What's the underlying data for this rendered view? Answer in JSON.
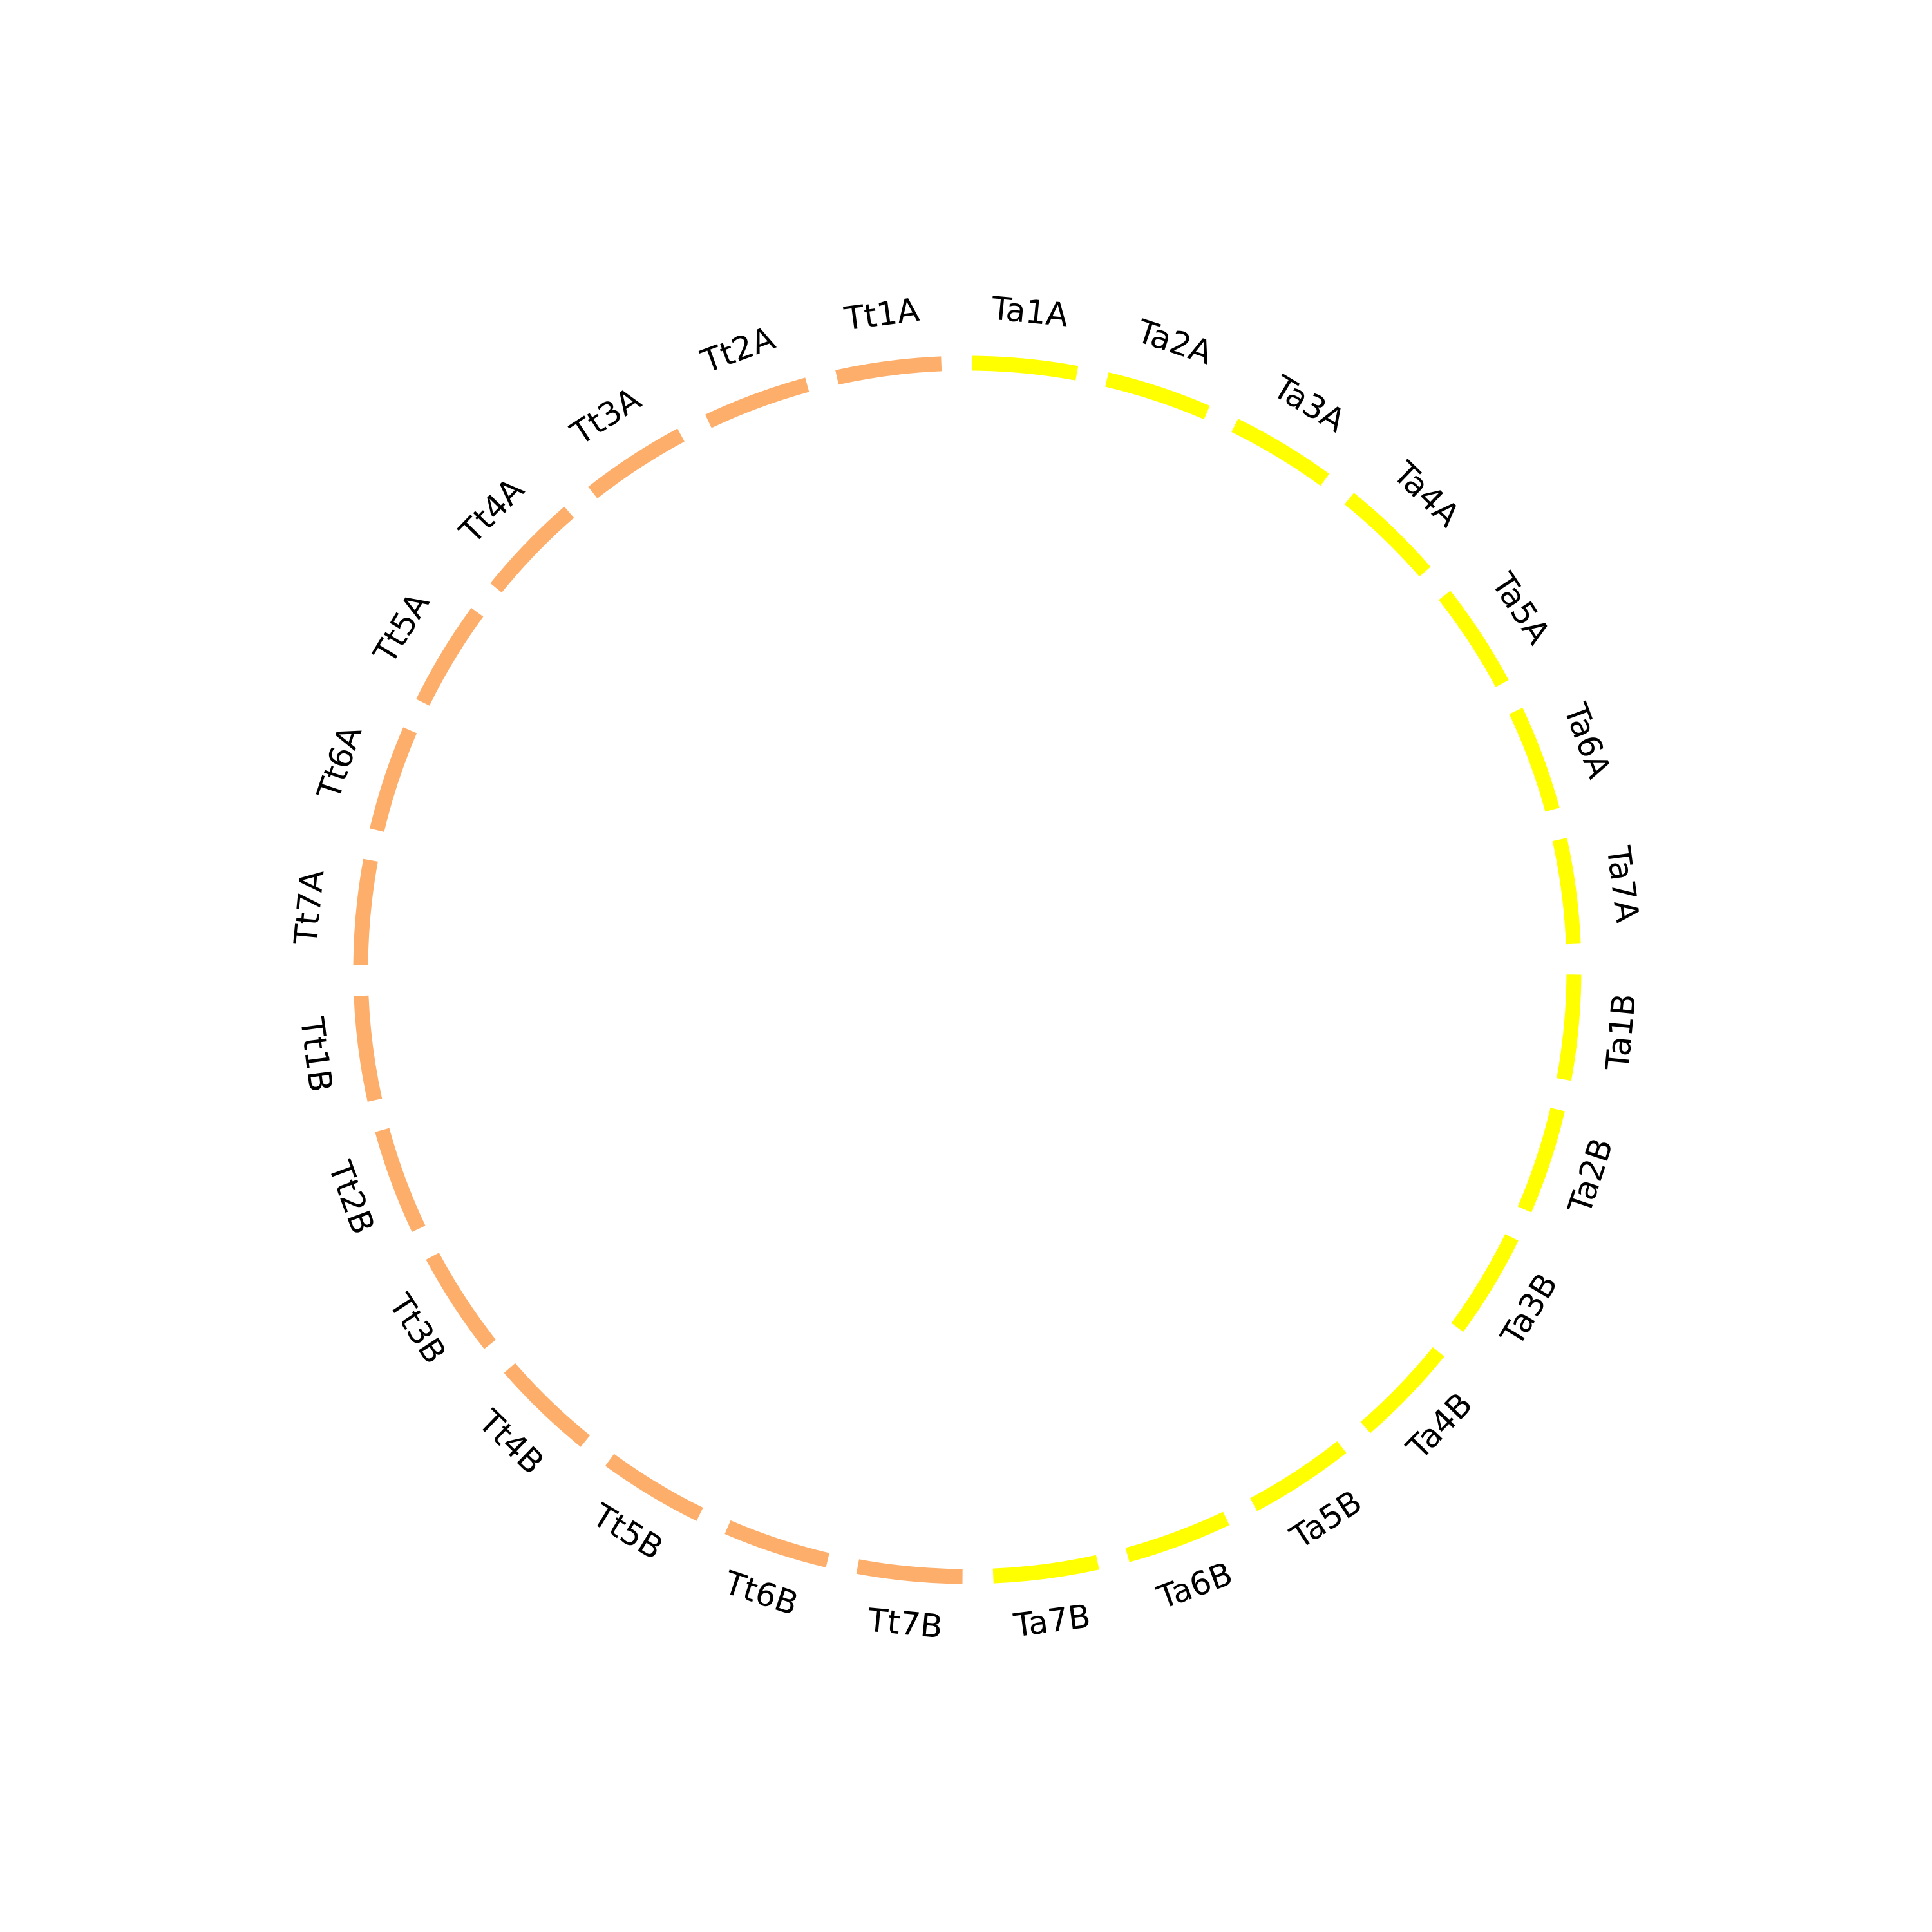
{
  "segments": [
    {
      "label": "Ta1A",
      "color": "#ffff00"
    },
    {
      "label": "Ta2A",
      "color": "#ffff00"
    },
    {
      "label": "Ta3A",
      "color": "#ffff00"
    },
    {
      "label": "Ta4A",
      "color": "#ffff00"
    },
    {
      "label": "Ta5A",
      "color": "#ffff00"
    },
    {
      "label": "Ta6A",
      "color": "#ffff00"
    },
    {
      "label": "Ta7A",
      "color": "#ffff00"
    },
    {
      "label": "Ta1B",
      "color": "#ffff00"
    },
    {
      "label": "Ta2B",
      "color": "#ffff00"
    },
    {
      "label": "Ta3B",
      "color": "#ffff00"
    },
    {
      "label": "Ta4B",
      "color": "#ffff00"
    },
    {
      "label": "Ta5B",
      "color": "#ffff00"
    },
    {
      "label": "Ta6B",
      "color": "#ffff00"
    },
    {
      "label": "Ta7B",
      "color": "#ffff00"
    },
    {
      "label": "Tt7B",
      "color": "#fdae6b"
    },
    {
      "label": "Tt6B",
      "color": "#fdae6b"
    },
    {
      "label": "Tt5B",
      "color": "#fdae6b"
    },
    {
      "label": "Tt4B",
      "color": "#fdae6b"
    },
    {
      "label": "Tt3B",
      "color": "#fdae6b"
    },
    {
      "label": "Tt2B",
      "color": "#fdae6b"
    },
    {
      "label": "Tt1B",
      "color": "#fdae6b"
    },
    {
      "label": "Tt7A",
      "color": "#fdae6b"
    },
    {
      "label": "Tt6A",
      "color": "#fdae6b"
    },
    {
      "label": "Tt5A",
      "color": "#fdae6b"
    },
    {
      "label": "Tt4A",
      "color": "#fdae6b"
    },
    {
      "label": "Tt3A",
      "color": "#fdae6b"
    },
    {
      "label": "Tt2A",
      "color": "#fdae6b"
    },
    {
      "label": "Tt1A",
      "color": "#fdae6b"
    }
  ]
}
